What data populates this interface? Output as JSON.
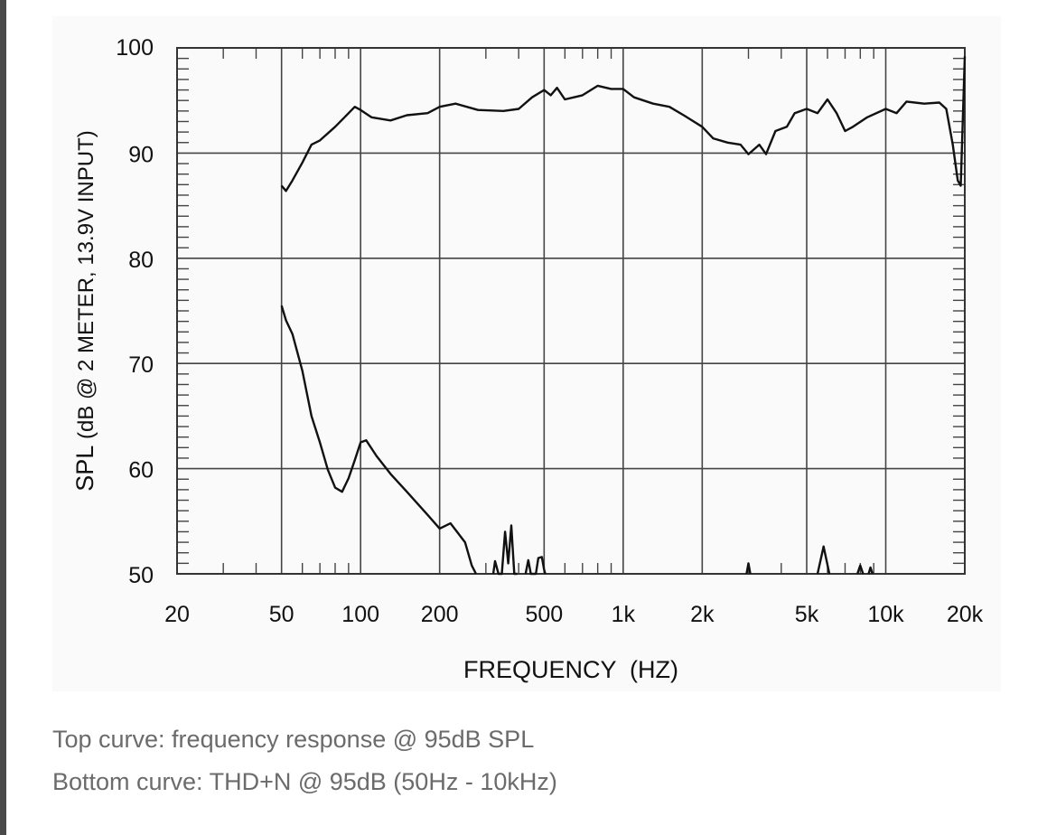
{
  "chart_data": {
    "type": "line",
    "xlabel": "FREQUENCY  (HZ)",
    "ylabel_main": "SPL",
    "ylabel_detail": " (dB @ 2 METER, 13.9V INPUT)",
    "xscale": "log",
    "xlim": [
      20,
      20000
    ],
    "ylim": [
      50,
      100
    ],
    "grid": true,
    "x_ticks": [
      {
        "value": 20,
        "label": "20"
      },
      {
        "value": 50,
        "label": "50"
      },
      {
        "value": 100,
        "label": "100"
      },
      {
        "value": 200,
        "label": "200"
      },
      {
        "value": 500,
        "label": "500"
      },
      {
        "value": 1000,
        "label": "1k"
      },
      {
        "value": 2000,
        "label": "2k"
      },
      {
        "value": 5000,
        "label": "5k"
      },
      {
        "value": 10000,
        "label": "10k"
      },
      {
        "value": 20000,
        "label": "20k"
      }
    ],
    "y_ticks": [
      {
        "value": 50,
        "label": "50"
      },
      {
        "value": 60,
        "label": "60"
      },
      {
        "value": 70,
        "label": "70"
      },
      {
        "value": 80,
        "label": "80"
      },
      {
        "value": 90,
        "label": "90"
      },
      {
        "value": 100,
        "label": "100"
      }
    ],
    "series": [
      {
        "name": "frequency response",
        "x": [
          50,
          52,
          55,
          60,
          65,
          70,
          80,
          90,
          95,
          100,
          110,
          130,
          150,
          180,
          200,
          230,
          280,
          350,
          400,
          450,
          500,
          530,
          560,
          600,
          700,
          800,
          900,
          1000,
          1100,
          1300,
          1500,
          1700,
          2000,
          2200,
          2500,
          2800,
          3000,
          3300,
          3500,
          3800,
          4200,
          4500,
          5000,
          5500,
          6000,
          6500,
          7000,
          7500,
          8500,
          10000,
          11000,
          12000,
          14000,
          16000,
          17000,
          18000,
          18800,
          19300,
          20000
        ],
        "y": [
          86.9,
          86.4,
          87.4,
          89.1,
          90.8,
          91.2,
          92.5,
          93.8,
          94.4,
          94.1,
          93.4,
          93.1,
          93.6,
          93.8,
          94.4,
          94.7,
          94.1,
          94.0,
          94.2,
          95.3,
          96.0,
          95.5,
          96.2,
          95.1,
          95.5,
          96.4,
          96.1,
          96.1,
          95.3,
          94.7,
          94.4,
          93.6,
          92.5,
          91.4,
          91.0,
          90.8,
          89.9,
          90.8,
          89.9,
          92.1,
          92.5,
          93.8,
          94.2,
          93.8,
          95.1,
          93.8,
          92.1,
          92.5,
          93.4,
          94.2,
          93.8,
          94.9,
          94.7,
          94.8,
          94.2,
          90.8,
          87.4,
          86.9,
          99.2
        ]
      },
      {
        "name": "THD+N",
        "segments": [
          {
            "x": [
              50,
              52,
              55,
              60,
              65,
              70,
              75,
              80,
              85,
              90,
              95,
              100,
              105,
              115,
              130,
              150,
              180,
              200,
              220,
              250,
              265,
              275
            ],
            "y": [
              75.5,
              74.1,
              72.8,
              69.3,
              65.0,
              62.5,
              59.9,
              58.2,
              57.8,
              59.1,
              60.8,
              62.5,
              62.7,
              61.2,
              59.5,
              57.8,
              55.6,
              54.3,
              54.8,
              53.0,
              50.8,
              50.0
            ]
          },
          {
            "x": [
              320,
              325,
              335,
              345,
              355,
              365,
              375,
              385,
              395
            ],
            "y": [
              50,
              51.2,
              50,
              50,
              54.0,
              51.0,
              54.6,
              50,
              50
            ]
          },
          {
            "x": [
              425,
              435,
              445,
              465,
              475,
              490,
              500,
              505
            ],
            "y": [
              50,
              51.3,
              50,
              50,
              51.5,
              51.6,
              50.4,
              50
            ]
          },
          {
            "x": [
              2950,
              3000,
              3050
            ],
            "y": [
              50,
              51.0,
              50
            ]
          },
          {
            "x": [
              5500,
              5800,
              6100
            ],
            "y": [
              50,
              52.6,
              50
            ]
          },
          {
            "x": [
              7800,
              8000,
              8200
            ],
            "y": [
              50,
              50.8,
              50
            ]
          },
          {
            "x": [
              8600,
              8750,
              8900
            ],
            "y": [
              50,
              50.6,
              50
            ]
          }
        ]
      }
    ]
  },
  "caption": {
    "line1": "Top curve: frequency response @ 95dB SPL",
    "line2": "Bottom curve: THD+N @ 95dB (50Hz - 10kHz)"
  }
}
